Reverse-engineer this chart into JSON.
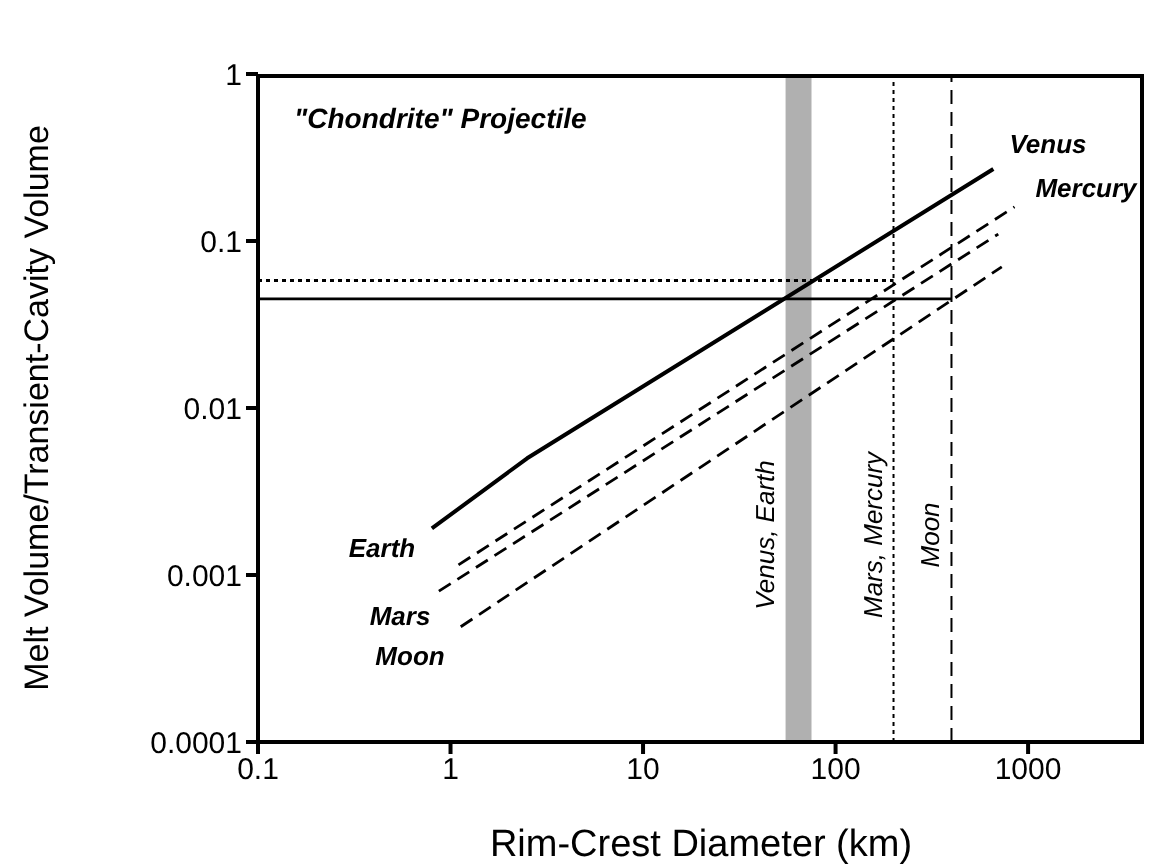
{
  "chart_data": {
    "type": "line",
    "xlabel": "Rim-Crest Diameter (km)",
    "ylabel": "Melt Volume/Transient-Cavity Volume",
    "log": "xy",
    "marker": "none",
    "xlim": [
      0.1,
      4000
    ],
    "ylim": [
      0.0001,
      1
    ],
    "xticks": [
      0.1,
      1,
      10,
      100,
      1000
    ],
    "yticks": [
      0.0001,
      0.001,
      0.01,
      0.1,
      1
    ],
    "series": [
      {
        "color": "#000000",
        "line_style": "solid",
        "x": [
          0.8,
          2.5,
          660
        ],
        "values": [
          0.0019,
          0.005,
          0.27
        ]
      },
      {
        "color": "#000000",
        "line_style": "dashed",
        "x": [
          1.1,
          850
        ],
        "values": [
          0.00115,
          0.16
        ]
      },
      {
        "color": "#000000",
        "line_style": "dashed",
        "x": [
          0.87,
          700
        ],
        "values": [
          0.0008,
          0.11
        ]
      },
      {
        "color": "#000000",
        "line_style": "dashed",
        "x": [
          1.13,
          730
        ],
        "values": [
          0.00049,
          0.07
        ]
      },
      {
        "color": "#000000",
        "line_style": "dotted",
        "x": [
          0.1,
          200
        ],
        "values": [
          0.058,
          0.058
        ]
      },
      {
        "color": "#000000",
        "line_style": "solid",
        "x": [
          0.1,
          400
        ],
        "values": [
          0.045,
          0.045
        ]
      }
    ],
    "ref_lines": [
      {
        "axis": "x",
        "value": 200,
        "label": "Mars, Mercury",
        "color": "#000000",
        "line_style": "dotted"
      },
      {
        "axis": "x",
        "value": 400,
        "label": "Moon",
        "color": "#000000",
        "line_style": "dashed"
      }
    ],
    "bands": [
      {
        "axis": "x",
        "from": 55,
        "to": 75,
        "label": "Venus, Earth",
        "color": "#b0b0b0"
      }
    ],
    "annotations": [
      "\"Chondrite\" Projectile",
      "Earth",
      "Mars",
      "Moon",
      "Venus",
      "Mercury"
    ]
  }
}
